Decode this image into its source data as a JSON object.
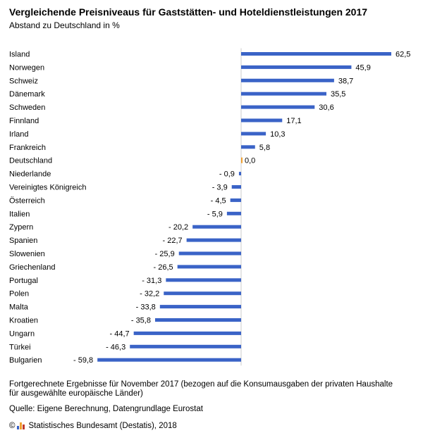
{
  "header": {
    "title": "Vergleichende Preisniveaus für Gaststätten- und Hoteldienstleistungen 2017",
    "subtitle": "Abstand zu Deutschland in %"
  },
  "chart_data": {
    "type": "bar",
    "orientation": "horizontal",
    "categories": [
      "Island",
      "Norwegen",
      "Schweiz",
      "Dänemark",
      "Schweden",
      "Finnland",
      "Irland",
      "Frankreich",
      "Deutschland",
      "Niederlande",
      "Vereinigtes Königreich",
      "Österreich",
      "Italien",
      "Zypern",
      "Spanien",
      "Slowenien",
      "Griechenland",
      "Portugal",
      "Polen",
      "Malta",
      "Kroatien",
      "Ungarn",
      "Türkei",
      "Bulgarien"
    ],
    "values": [
      62.5,
      45.9,
      38.7,
      35.5,
      30.6,
      17.1,
      10.3,
      5.8,
      0.0,
      -0.9,
      -3.9,
      -4.5,
      -5.9,
      -20.2,
      -22.7,
      -25.9,
      -26.5,
      -31.3,
      -32.2,
      -33.8,
      -35.8,
      -44.7,
      -46.3,
      -59.8
    ],
    "value_labels": [
      "62,5",
      "45,9",
      "38,7",
      "35,5",
      "30,6",
      "17,1",
      "10,3",
      "5,8",
      "0,0",
      "- 0,9",
      "- 3,9",
      "- 4,5",
      "- 5,9",
      "- 20,2",
      "- 22,7",
      "- 25,9",
      "- 26,5",
      "- 31,3",
      "- 32,2",
      "- 33,8",
      "- 35,8",
      "- 44,7",
      "- 46,3",
      "- 59,8"
    ],
    "bar_color": "#3a63c7",
    "highlight_color": "#f0a030",
    "highlight_category": "Deutschland"
  },
  "footnote": "Fortgerechnete Ergebnisse für November 2017 (bezogen auf die Konsumausgaben der privaten Haushalte für ausgewählte europäische Länder)",
  "source": "Quelle: Eigene Berechnung, Datengrundlage Eurostat",
  "copyright": {
    "symbol": "©",
    "text": "Statistisches Bundesamt (Destatis), 2018"
  }
}
